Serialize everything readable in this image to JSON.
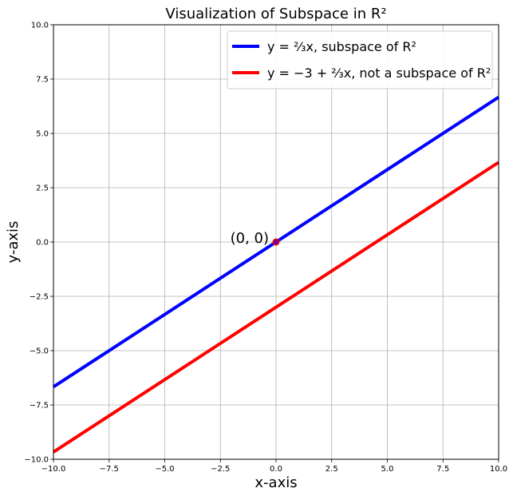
{
  "chart_data": {
    "type": "line",
    "title": "Visualization of Subspace in R²",
    "xlabel": "x-axis",
    "ylabel": "y-axis",
    "xlim": [
      -10,
      10
    ],
    "ylim": [
      -10,
      10
    ],
    "x_ticks": [
      "−10.0",
      "−7.5",
      "−5.0",
      "−2.5",
      "0.0",
      "2.5",
      "5.0",
      "7.5",
      "10.0"
    ],
    "y_ticks": [
      "−10.0",
      "−7.5",
      "−5.0",
      "−2.5",
      "0.0",
      "2.5",
      "5.0",
      "7.5",
      "10.0"
    ],
    "grid": true,
    "legend_position": "top-right",
    "series": [
      {
        "name": "y = ⅔x, subspace of R²",
        "color": "#0000ff",
        "x": [
          -10,
          10
        ],
        "y": [
          -6.667,
          6.667
        ]
      },
      {
        "name": "y = −3 + ⅔x, not a subspace of R²",
        "color": "#ff0000",
        "x": [
          -10,
          10
        ],
        "y": [
          -9.667,
          3.667
        ]
      }
    ],
    "annotations": [
      {
        "text": "(0, 0)",
        "x": 0,
        "y": 0,
        "marker_color": "#ff0000"
      }
    ]
  }
}
